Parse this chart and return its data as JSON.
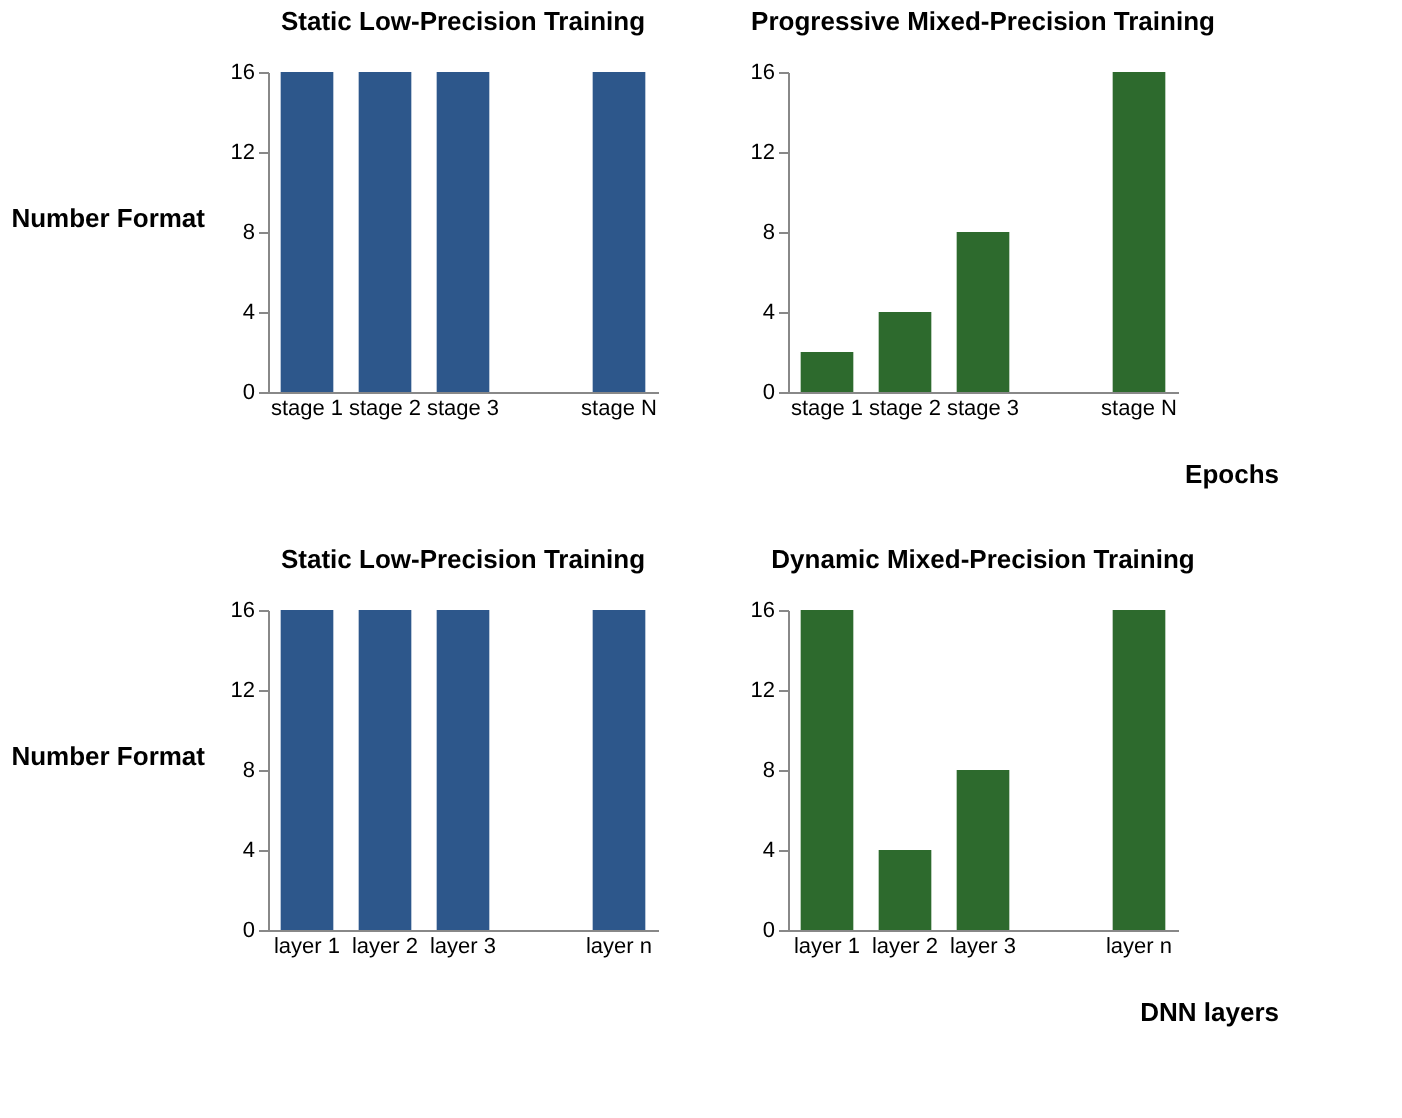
{
  "chart_data": [
    {
      "type": "bar",
      "title": "Static Low-Precision Training",
      "ylabel": "Number Format",
      "categories": [
        "stage 1",
        "stage 2",
        "stage 3",
        null,
        "stage N"
      ],
      "values": [
        16,
        16,
        16,
        null,
        16
      ],
      "color": "#2d578b",
      "ylim": [
        0,
        16
      ],
      "yticks": [
        0,
        4,
        8,
        12,
        16
      ]
    },
    {
      "type": "bar",
      "title": "Progressive Mixed-Precision Training",
      "xlabel": "Epochs",
      "categories": [
        "stage 1",
        "stage 2",
        "stage 3",
        null,
        "stage N"
      ],
      "values": [
        2,
        4,
        8,
        null,
        16
      ],
      "color": "#2d6a2d",
      "ylim": [
        0,
        16
      ],
      "yticks": [
        0,
        4,
        8,
        12,
        16
      ]
    },
    {
      "type": "bar",
      "title": "Static Low-Precision Training",
      "ylabel": "Number Format",
      "categories": [
        "layer 1",
        "layer 2",
        "layer 3",
        null,
        "layer n"
      ],
      "values": [
        16,
        16,
        16,
        null,
        16
      ],
      "color": "#2d578b",
      "ylim": [
        0,
        16
      ],
      "yticks": [
        0,
        4,
        8,
        12,
        16
      ]
    },
    {
      "type": "bar",
      "title": "Dynamic Mixed-Precision Training",
      "xlabel": "DNN layers",
      "categories": [
        "layer 1",
        "layer 2",
        "layer 3",
        null,
        "layer n"
      ],
      "values": [
        16,
        4,
        8,
        null,
        16
      ],
      "color": "#2d6a2d",
      "ylim": [
        0,
        16
      ],
      "yticks": [
        0,
        4,
        8,
        12,
        16
      ]
    }
  ]
}
